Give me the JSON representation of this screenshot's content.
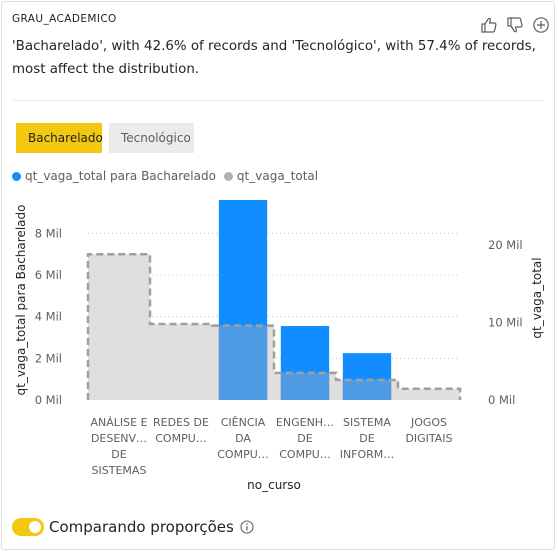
{
  "field_title": "GRAU_ACADEMICO",
  "summary": "'Bacharelado', with 42.6% of records and 'Tecnológico', with 57.4% of records, most affect the distribution.",
  "icons": [
    "thumbs-up-icon",
    "thumbs-down-icon",
    "add-circle-icon",
    "info-icon"
  ],
  "filters": {
    "selected": "Bacharelado",
    "other": "Tecnológico"
  },
  "colors": {
    "accent": "#f2c811",
    "primary_series": "#118dff",
    "secondary_series": "#b3b0ad",
    "gray_bar": "#e1dfdd"
  },
  "toggle": {
    "label": "Comparando proporções",
    "on": true
  },
  "chart_data": {
    "type": "bar",
    "xlabel": "no_curso",
    "ylabel_left": "qt_vaga_total para Bacharelado",
    "ylabel_right": "qt_vaga_total",
    "legend_position": "top-left",
    "categories": [
      [
        "ANÁLISE E",
        "DESENV…",
        "DE",
        "SISTEMAS"
      ],
      [
        "REDES DE",
        "COMPU…"
      ],
      [
        "CIÊNCIA",
        "DA",
        "COMPU…"
      ],
      [
        "ENGENH…",
        "DE",
        "COMPU…"
      ],
      [
        "SISTEMA",
        "DE",
        "INFORM…"
      ],
      [
        "JOGOS",
        "DIGITAIS"
      ]
    ],
    "left_axis": {
      "min": 0,
      "max": 9.6,
      "ticks": [
        0,
        2,
        4,
        6,
        8
      ],
      "tick_labels": [
        "0 Mil",
        "2 Mil",
        "4 Mil",
        "6 Mil",
        "8 Mil"
      ]
    },
    "right_axis": {
      "min": 0,
      "max": 25.8,
      "ticks": [
        0,
        10,
        20
      ],
      "tick_labels": [
        "0 Mil",
        "10 Mil",
        "20 Mil"
      ]
    },
    "series": [
      {
        "name": "qt_vaga_total para Bacharelado",
        "axis": "left",
        "values": [
          0,
          0,
          9.6,
          3.55,
          2.25,
          0
        ]
      },
      {
        "name": "qt_vaga_total",
        "axis": "right",
        "values": [
          18.8,
          9.8,
          9.6,
          3.5,
          2.6,
          1.45
        ]
      }
    ]
  }
}
